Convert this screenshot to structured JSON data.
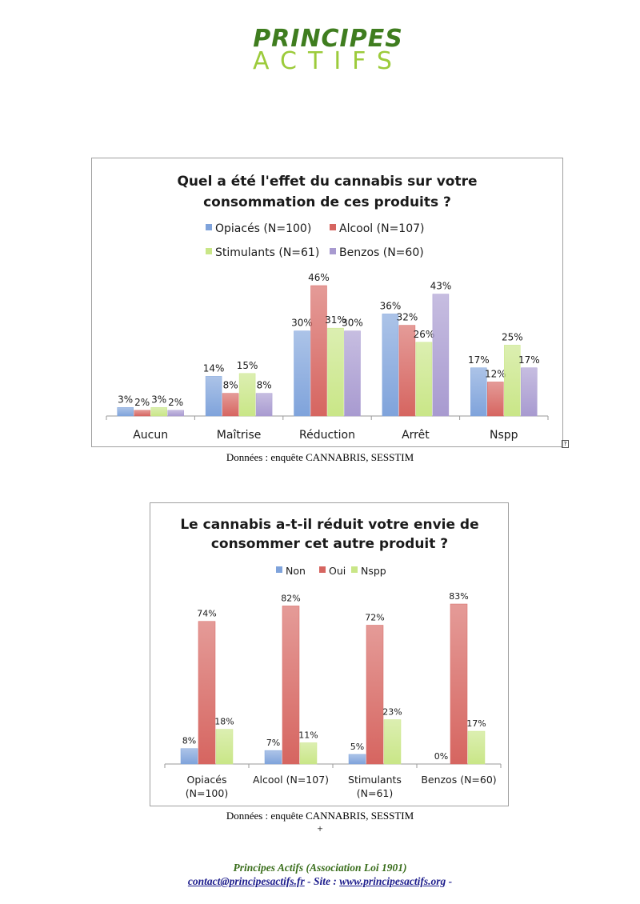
{
  "logo": {
    "line1": "PRINCIPES",
    "line2": "ACTIFS",
    "color1": "#3f7d1f",
    "color2": "#9ccb3b"
  },
  "colors": {
    "blue": "#7fa3db",
    "red": "#d66560",
    "green": "#c9e687",
    "purple": "#a89ad0"
  },
  "chart_data": [
    {
      "type": "bar",
      "title": [
        "Quel a été l'effet du cannabis sur votre",
        "consommation de ces produits ?"
      ],
      "categories": [
        "Aucun",
        "Maîtrise",
        "Réduction",
        "Arrêt",
        "Nspp"
      ],
      "series": [
        {
          "name": "Opiacés (N=100)",
          "values": [
            3,
            14,
            30,
            36,
            17
          ],
          "color": "#7fa3db"
        },
        {
          "name": "Alcool (N=107)",
          "values": [
            2,
            8,
            46,
            32,
            12
          ],
          "color": "#d66560"
        },
        {
          "name": "Stimulants (N=61)",
          "values": [
            3,
            15,
            31,
            26,
            25
          ],
          "color": "#c9e687"
        },
        {
          "name": "Benzos (N=60)",
          "values": [
            2,
            8,
            30,
            43,
            17
          ],
          "color": "#a89ad0"
        }
      ],
      "value_suffix": "%",
      "ylim": [
        0,
        46
      ],
      "legend": "top",
      "grid": false
    },
    {
      "type": "bar",
      "title": [
        "Le cannabis a-t-il réduit votre envie de",
        "consommer cet autre produit ?"
      ],
      "categories": [
        [
          "Opiacés",
          "(N=100)"
        ],
        [
          "Alcool (N=107)"
        ],
        [
          "Stimulants",
          "(N=61)"
        ],
        [
          "Benzos (N=60)"
        ]
      ],
      "series": [
        {
          "name": "Non",
          "values": [
            8,
            7,
            5,
            0
          ],
          "color": "#7fa3db"
        },
        {
          "name": "Oui",
          "values": [
            74,
            82,
            72,
            83
          ],
          "color": "#d66560"
        },
        {
          "name": "Nspp",
          "values": [
            18,
            11,
            23,
            17
          ],
          "color": "#c9e687"
        }
      ],
      "value_suffix": "%",
      "ylim": [
        0,
        83
      ],
      "legend": "top",
      "grid": false
    }
  ],
  "captions": {
    "chart1": "Données : enquête CANNABRIS, SESSTIM",
    "chart2": "Données : enquête CANNABRIS, SESSTIM"
  },
  "plus_mark": "+",
  "corner_mark": "?",
  "footer": {
    "org": "Principes Actifs (Association Loi 1901)",
    "email": "contact@principesactifs.fr",
    "site_prefix": " - Site : ",
    "site": "www.principesactifs.org",
    "site_suffix": " -"
  }
}
